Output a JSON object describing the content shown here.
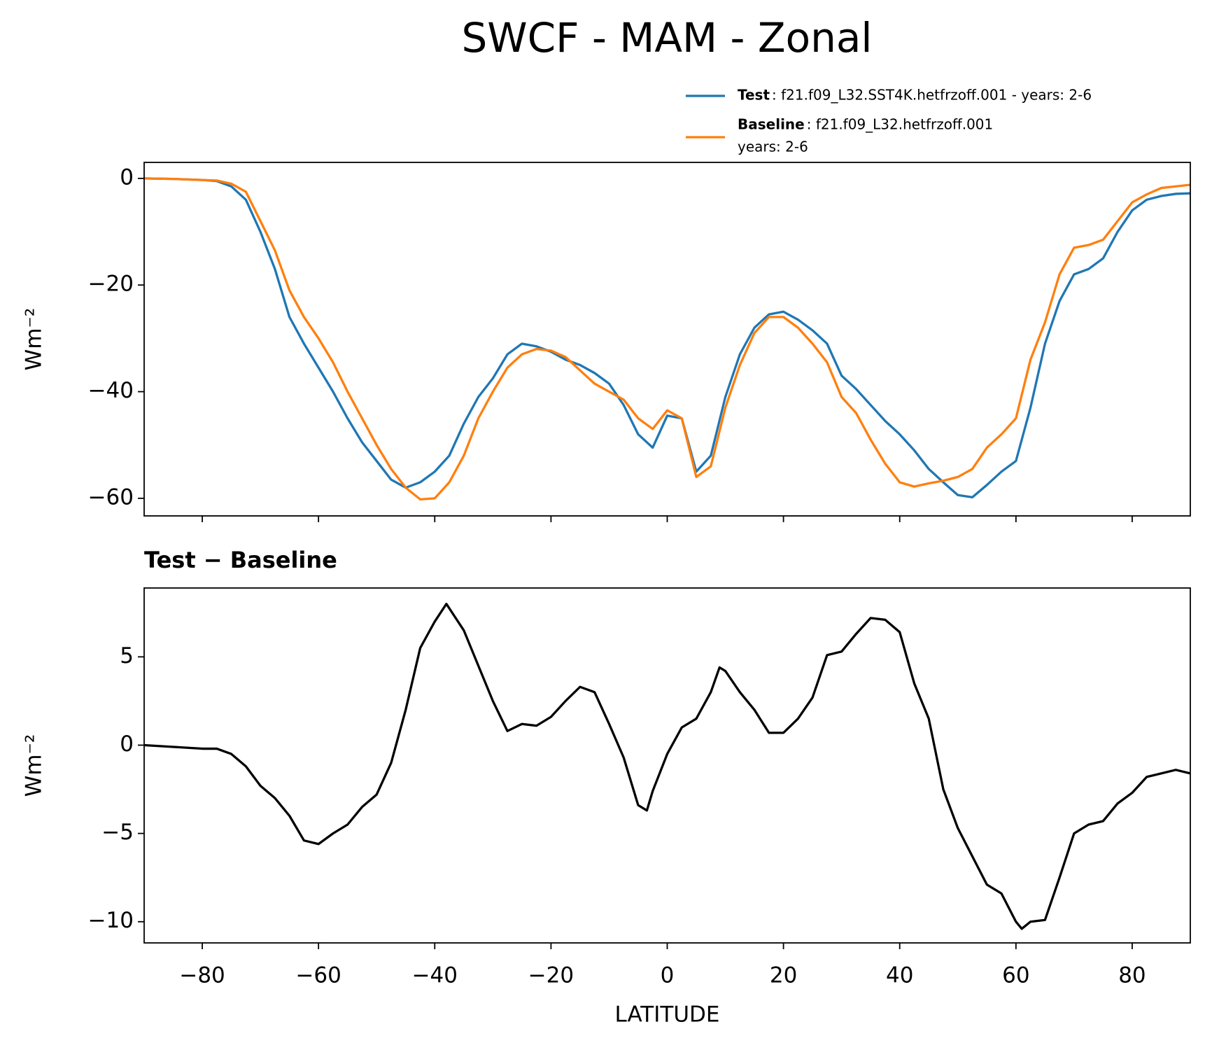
{
  "title": "SWCF - MAM - Zonal",
  "chart_data": [
    {
      "type": "line",
      "ylabel": "Wm⁻²",
      "x": [
        -90,
        -87.5,
        -85,
        -82.5,
        -80,
        -77.5,
        -75,
        -72.5,
        -70,
        -67.5,
        -65,
        -62.5,
        -60,
        -57.5,
        -55,
        -52.5,
        -50,
        -47.5,
        -45,
        -42.5,
        -40,
        -37.5,
        -35,
        -32.5,
        -30,
        -27.5,
        -25,
        -22.5,
        -20,
        -17.5,
        -15,
        -12.5,
        -10,
        -7.5,
        -5,
        -2.5,
        0,
        2.5,
        5,
        7.5,
        10,
        12.5,
        15,
        17.5,
        20,
        22.5,
        25,
        27.5,
        30,
        32.5,
        35,
        37.5,
        40,
        42.5,
        45,
        47.5,
        50,
        52.5,
        55,
        57.5,
        60,
        62.5,
        65,
        67.5,
        70,
        72.5,
        75,
        77.5,
        80,
        82.5,
        85,
        87.5,
        90
      ],
      "series": [
        {
          "name": "Test",
          "legend_detail": [
            ": f21.f09_L32.SST4K.hetfrzoff.001 - years: 2-6"
          ],
          "color": "#1f77b4",
          "values": [
            0,
            -0.05,
            -0.1,
            -0.2,
            -0.3,
            -0.5,
            -1.5,
            -4,
            -10,
            -17,
            -26,
            -31,
            -35.5,
            -40,
            -45,
            -49.5,
            -53,
            -56.5,
            -58,
            -57,
            -55,
            -52,
            -46,
            -41,
            -37.5,
            -33,
            -31,
            -31.5,
            -32.5,
            -34,
            -35,
            -36.5,
            -38.5,
            -42.5,
            -48,
            -50.5,
            -44.5,
            -45,
            -55,
            -52,
            -41,
            -33,
            -28,
            -25.5,
            -25,
            -26.5,
            -28.5,
            -31,
            -37,
            -39.5,
            -42.5,
            -45.5,
            -48,
            -51,
            -54.5,
            -57,
            -59.4,
            -59.8,
            -57.5,
            -55,
            -53,
            -43,
            -31,
            -23,
            -18,
            -17,
            -15,
            -10,
            -6,
            -4,
            -3.3,
            -2.9,
            -2.8
          ]
        },
        {
          "name": "Baseline",
          "legend_detail": [
            ": f21.f09_L32.hetfrzoff.001",
            "years: 2-6"
          ],
          "color": "#ff7f0e",
          "values": [
            0,
            -0.05,
            -0.1,
            -0.2,
            -0.3,
            -0.4,
            -1,
            -2.5,
            -8,
            -13.5,
            -21,
            -26,
            -30,
            -34.5,
            -40,
            -45,
            -50,
            -54.5,
            -58,
            -60.2,
            -60,
            -57,
            -52,
            -45,
            -40,
            -35.5,
            -33,
            -32,
            -32.3,
            -33.5,
            -36,
            -38.5,
            -40,
            -41.5,
            -45,
            -47,
            -43.5,
            -45,
            -56,
            -54,
            -43,
            -35,
            -29,
            -26,
            -26,
            -28,
            -31,
            -34.5,
            -41,
            -44,
            -49,
            -53.5,
            -57,
            -57.8,
            -57.2,
            -56.7,
            -56,
            -54.5,
            -50.5,
            -48,
            -45,
            -34,
            -27,
            -18,
            -13,
            -12.5,
            -11.5,
            -8,
            -4.5,
            -3,
            -1.8,
            -1.5,
            -1.2
          ]
        }
      ],
      "xlim": [
        -90,
        90
      ],
      "xticks": [
        -80,
        -60,
        -40,
        -20,
        0,
        20,
        40,
        60,
        80
      ],
      "show_xtick_labels": false,
      "ylim": [
        -63.3,
        3
      ],
      "yticks": [
        {
          "value": -60,
          "label": "−60"
        },
        {
          "value": -40,
          "label": "−40"
        },
        {
          "value": -20,
          "label": "−20"
        },
        0
      ]
    },
    {
      "type": "line",
      "title": "Test − Baseline",
      "xlabel": "LATITUDE",
      "ylabel": "Wm⁻²",
      "x": [
        -90,
        -85,
        -80,
        -77.5,
        -75,
        -72.5,
        -70,
        -67.5,
        -65,
        -62.5,
        -60,
        -57.5,
        -55,
        -52.5,
        -50,
        -47.5,
        -45,
        -42.5,
        -40,
        -38,
        -35,
        -32.5,
        -30,
        -27.5,
        -25,
        -22.5,
        -20,
        -17.5,
        -15,
        -12.5,
        -10,
        -7.5,
        -5,
        -3.5,
        -2.5,
        0,
        2.5,
        5,
        7.5,
        9,
        10,
        12.5,
        15,
        17.5,
        20,
        22.5,
        25,
        27.5,
        30,
        32.5,
        35,
        37.5,
        40,
        42.5,
        45,
        47.5,
        50,
        52.5,
        55,
        57.5,
        60,
        61,
        62.5,
        65,
        67.5,
        70,
        72.5,
        75,
        77.5,
        80,
        82.5,
        85,
        87.5,
        90
      ],
      "series": [
        {
          "color": "#000000",
          "values": [
            0,
            -0.1,
            -0.2,
            -0.2,
            -0.5,
            -1.2,
            -2.3,
            -3,
            -4,
            -5.4,
            -5.6,
            -5,
            -4.5,
            -3.5,
            -2.8,
            -1,
            2,
            5.5,
            7,
            8,
            6.5,
            4.5,
            2.5,
            0.8,
            1.2,
            1.1,
            1.6,
            2.5,
            3.3,
            3,
            1.2,
            -0.7,
            -3.4,
            -3.7,
            -2.6,
            -0.5,
            1,
            1.5,
            3,
            4.4,
            4.2,
            3,
            2,
            0.7,
            0.7,
            1.5,
            2.7,
            5.1,
            5.3,
            6.3,
            7.2,
            7.1,
            6.4,
            3.5,
            1.5,
            -2.5,
            -4.7,
            -6.3,
            -7.9,
            -8.4,
            -10,
            -10.4,
            -10,
            -9.9,
            -7.5,
            -5,
            -4.5,
            -4.3,
            -3.3,
            -2.7,
            -1.8,
            -1.6,
            -1.4,
            -1.6
          ]
        }
      ],
      "xlim": [
        -90,
        90
      ],
      "xticks": [
        {
          "value": -80,
          "label": "−80"
        },
        {
          "value": -60,
          "label": "−60"
        },
        {
          "value": -40,
          "label": "−40"
        },
        {
          "value": -20,
          "label": "−20"
        },
        0,
        20,
        40,
        60,
        80
      ],
      "show_xtick_labels": true,
      "ylim": [
        -11.2,
        8.9
      ],
      "yticks": [
        {
          "value": -10,
          "label": "−10"
        },
        {
          "value": -5,
          "label": "−5"
        },
        0,
        5
      ]
    }
  ]
}
